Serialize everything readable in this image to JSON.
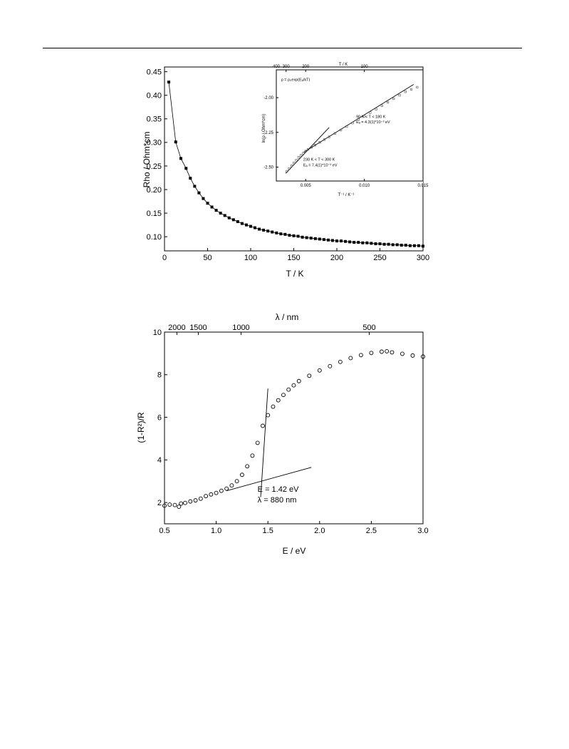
{
  "chart_data": [
    {
      "type": "scatter",
      "title": "",
      "xlabel": "T / K",
      "ylabel": "Rho / Ohm*cm",
      "xlim": [
        0,
        300
      ],
      "ylim": [
        0.07,
        0.46
      ],
      "x_ticks": [
        "0",
        "50",
        "100",
        "150",
        "200",
        "250",
        "300"
      ],
      "y_ticks": [
        "0.10",
        "0.15",
        "0.20",
        "0.25",
        "0.30",
        "0.35",
        "0.40",
        "0.45"
      ],
      "grid": false,
      "marker": "filled-square",
      "connecting_line": true,
      "x": [
        5,
        13,
        19,
        25,
        30,
        35,
        40,
        45,
        50,
        55,
        60,
        65,
        70,
        75,
        80,
        85,
        90,
        95,
        100,
        105,
        110,
        115,
        120,
        125,
        130,
        135,
        140,
        145,
        150,
        155,
        160,
        165,
        170,
        175,
        180,
        185,
        190,
        195,
        200,
        205,
        210,
        215,
        220,
        225,
        230,
        235,
        240,
        245,
        250,
        255,
        260,
        265,
        270,
        275,
        280,
        285,
        290,
        295,
        300
      ],
      "y": [
        0.428,
        0.301,
        0.266,
        0.245,
        0.224,
        0.207,
        0.193,
        0.181,
        0.171,
        0.163,
        0.156,
        0.15,
        0.145,
        0.14,
        0.136,
        0.132,
        0.128,
        0.125,
        0.122,
        0.119,
        0.116,
        0.114,
        0.112,
        0.11,
        0.108,
        0.106,
        0.105,
        0.103,
        0.102,
        0.101,
        0.099,
        0.098,
        0.097,
        0.096,
        0.095,
        0.094,
        0.093,
        0.092,
        0.091,
        0.091,
        0.09,
        0.089,
        0.088,
        0.088,
        0.087,
        0.087,
        0.086,
        0.085,
        0.085,
        0.084,
        0.084,
        0.083,
        0.083,
        0.082,
        0.082,
        0.081,
        0.081,
        0.081,
        0.08
      ]
    },
    {
      "type": "scatter",
      "title": "",
      "xlabel": "T⁻¹ / K⁻¹",
      "ylabel": "ln(ρ / Ohm*cm)",
      "top_axis_label": "T / K",
      "top_ticks": [
        {
          "label": "400",
          "T": 400
        },
        {
          "label": "300",
          "T": 300
        },
        {
          "label": "200",
          "T": 200
        },
        {
          "label": "100",
          "T": 100
        }
      ],
      "xlim": [
        0.0025,
        0.015
      ],
      "ylim": [
        -2.6,
        -1.8
      ],
      "x_ticks": [
        "0.005",
        "0.010",
        "0.015"
      ],
      "y_ticks": [
        "-2.50",
        "-2.25",
        "-2.00"
      ],
      "grid": false,
      "marker": "open-square",
      "x": [
        0.0034,
        0.0036,
        0.0038,
        0.004,
        0.0042,
        0.0044,
        0.0046,
        0.0048,
        0.005,
        0.0052,
        0.0055,
        0.0058,
        0.0062,
        0.0066,
        0.007,
        0.0075,
        0.008,
        0.0085,
        0.009,
        0.0095,
        0.01,
        0.0105,
        0.011,
        0.0115,
        0.012,
        0.0125,
        0.013,
        0.0135,
        0.014,
        0.0145
      ],
      "y": [
        -2.53,
        -2.51,
        -2.49,
        -2.47,
        -2.45,
        -2.43,
        -2.415,
        -2.4,
        -2.385,
        -2.372,
        -2.357,
        -2.342,
        -2.322,
        -2.302,
        -2.282,
        -2.258,
        -2.233,
        -2.208,
        -2.183,
        -2.158,
        -2.133,
        -2.108,
        -2.083,
        -2.058,
        -2.033,
        -2.008,
        -1.983,
        -1.958,
        -1.94,
        -1.925
      ],
      "fit_lines": [
        {
          "x": [
            0.0033,
            0.007
          ],
          "y": [
            -2.545,
            -2.215
          ]
        },
        {
          "x": [
            0.0048,
            0.0142
          ],
          "y": [
            -2.395,
            -1.905
          ]
        }
      ],
      "annotations": [
        {
          "text": "ρ = ρ₀exp(Eₐ/kT)",
          "x": 0.0029,
          "y": -1.88
        },
        {
          "text": "90 K < T < 180 K",
          "x": 0.0093,
          "y": -2.145
        },
        {
          "text": "Eₐ = 4.3(1)*10⁻³ eV",
          "x": 0.0093,
          "y": -2.185
        },
        {
          "text": "230 K < T < 300 K",
          "x": 0.0048,
          "y": -2.455
        },
        {
          "text": "Eₐ = 7.4(1)*10⁻³ eV",
          "x": 0.0048,
          "y": -2.495
        }
      ]
    },
    {
      "type": "scatter",
      "title": "",
      "xlabel": "E / eV",
      "ylabel": "(1-R²)/R",
      "top_axis_label": "λ / nm",
      "top_ticks": [
        {
          "label": "2000",
          "nm": 2000
        },
        {
          "label": "1500",
          "nm": 1500
        },
        {
          "label": "1000",
          "nm": 1000
        },
        {
          "label": "500",
          "nm": 500
        }
      ],
      "xlim": [
        0.5,
        3.0
      ],
      "ylim": [
        1,
        10
      ],
      "x_ticks": [
        "0.5",
        "1.0",
        "1.5",
        "2.0",
        "2.5",
        "3.0"
      ],
      "y_ticks": [
        "2",
        "4",
        "6",
        "8",
        "10"
      ],
      "grid": false,
      "marker": "open-circle",
      "x": [
        0.5,
        0.55,
        0.6,
        0.64,
        0.66,
        0.7,
        0.75,
        0.8,
        0.85,
        0.9,
        0.95,
        1.0,
        1.05,
        1.1,
        1.15,
        1.2,
        1.25,
        1.3,
        1.35,
        1.4,
        1.45,
        1.5,
        1.55,
        1.6,
        1.65,
        1.7,
        1.75,
        1.8,
        1.9,
        2.0,
        2.1,
        2.2,
        2.3,
        2.4,
        2.5,
        2.6,
        2.65,
        2.7,
        2.8,
        2.9,
        3.0
      ],
      "y": [
        1.85,
        1.9,
        1.88,
        1.8,
        1.95,
        1.98,
        2.05,
        2.1,
        2.18,
        2.3,
        2.38,
        2.45,
        2.55,
        2.65,
        2.8,
        3.0,
        3.3,
        3.7,
        4.2,
        4.8,
        5.6,
        6.1,
        6.5,
        6.8,
        7.05,
        7.3,
        7.5,
        7.7,
        7.95,
        8.2,
        8.4,
        8.6,
        8.78,
        8.92,
        9.02,
        9.08,
        9.1,
        9.05,
        8.98,
        8.9,
        8.85
      ],
      "fit_lines": [
        {
          "x": [
            1.1,
            1.92
          ],
          "y": [
            2.55,
            3.65
          ]
        },
        {
          "x": [
            1.43,
            1.5
          ],
          "y": [
            2.25,
            7.35
          ]
        }
      ],
      "annotations": [
        {
          "text": "E = 1.42 eV",
          "x": 1.4,
          "y": 2.5
        },
        {
          "text": "λ = 880 nm",
          "x": 1.4,
          "y": 2.0
        }
      ]
    }
  ]
}
